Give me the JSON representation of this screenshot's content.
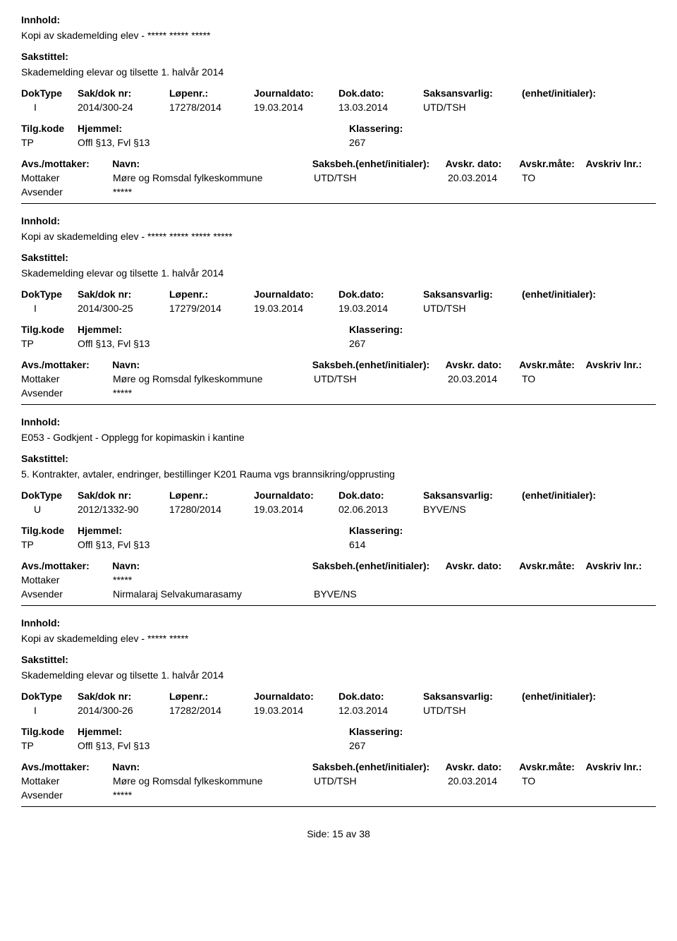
{
  "labels": {
    "innhold": "Innhold:",
    "sakstittel": "Sakstittel:",
    "doktype": "DokType",
    "sakdok": "Sak/dok nr:",
    "lopenr": "Løpenr.:",
    "journaldato": "Journaldato:",
    "dokdato": "Dok.dato:",
    "saksansvarlig": "Saksansvarlig:",
    "enhet": "(enhet/initialer):",
    "tilgkode": "Tilg.kode",
    "hjemmel": "Hjemmel:",
    "klassering": "Klassering:",
    "avsmottaker": "Avs./mottaker:",
    "navn": "Navn:",
    "saksbeh": "Saksbeh.(enhet/initialer):",
    "avskrdato": "Avskr. dato:",
    "avskrmate": "Avskr.måte:",
    "avskrivlnr": "Avskriv lnr.:",
    "mottaker": "Mottaker",
    "avsender": "Avsender"
  },
  "records": [
    {
      "innhold": "Kopi av skademelding elev - ***** ***** *****",
      "sakstittel": "Skademelding elevar og tilsette 1. halvår 2014",
      "doktype": "I",
      "sakdok": "2014/300-24",
      "lopenr": "17278/2014",
      "journaldato": "19.03.2014",
      "dokdato": "13.03.2014",
      "saksansvarlig": "UTD/TSH",
      "tilgkode": "TP",
      "hjemmel": "Offl §13, Fvl §13",
      "klassering": "267",
      "mottaker_navn": "Møre og Romsdal fylkeskommune",
      "saksbeh_val": "UTD/TSH",
      "avskrdato": "20.03.2014",
      "avskrmate": "TO",
      "avsender_navn": "*****",
      "avsender_saksbeh": ""
    },
    {
      "innhold": "Kopi av skademelding elev - ***** ***** ***** *****",
      "sakstittel": "Skademelding elevar og tilsette 1. halvår 2014",
      "doktype": "I",
      "sakdok": "2014/300-25",
      "lopenr": "17279/2014",
      "journaldato": "19.03.2014",
      "dokdato": "19.03.2014",
      "saksansvarlig": "UTD/TSH",
      "tilgkode": "TP",
      "hjemmel": "Offl §13, Fvl §13",
      "klassering": "267",
      "mottaker_navn": "Møre og Romsdal fylkeskommune",
      "saksbeh_val": "UTD/TSH",
      "avskrdato": "20.03.2014",
      "avskrmate": "TO",
      "avsender_navn": "*****",
      "avsender_saksbeh": ""
    },
    {
      "innhold": "E053 - Godkjent - Opplegg for kopimaskin i kantine",
      "sakstittel": "5. Kontrakter, avtaler, endringer, bestillinger K201 Rauma vgs brannsikring/opprusting",
      "doktype": "U",
      "sakdok": "2012/1332-90",
      "lopenr": "17280/2014",
      "journaldato": "19.03.2014",
      "dokdato": "02.06.2013",
      "saksansvarlig": "BYVE/NS",
      "tilgkode": "TP",
      "hjemmel": "Offl §13, Fvl §13",
      "klassering": "614",
      "mottaker_navn": "*****",
      "saksbeh_val": "",
      "avskrdato": "",
      "avskrmate": "",
      "avsender_navn": "Nirmalaraj Selvakumarasamy",
      "avsender_saksbeh": "BYVE/NS"
    },
    {
      "innhold": "Kopi av skademelding elev - ***** *****",
      "sakstittel": "Skademelding elevar og tilsette 1. halvår 2014",
      "doktype": "I",
      "sakdok": "2014/300-26",
      "lopenr": "17282/2014",
      "journaldato": "19.03.2014",
      "dokdato": "12.03.2014",
      "saksansvarlig": "UTD/TSH",
      "tilgkode": "TP",
      "hjemmel": "Offl §13, Fvl §13",
      "klassering": "267",
      "mottaker_navn": "Møre og Romsdal fylkeskommune",
      "saksbeh_val": "UTD/TSH",
      "avskrdato": "20.03.2014",
      "avskrmate": "TO",
      "avsender_navn": "*****",
      "avsender_saksbeh": ""
    }
  ],
  "footer": {
    "side_label": "Side:",
    "page": "15",
    "av": "av",
    "total": "38"
  }
}
